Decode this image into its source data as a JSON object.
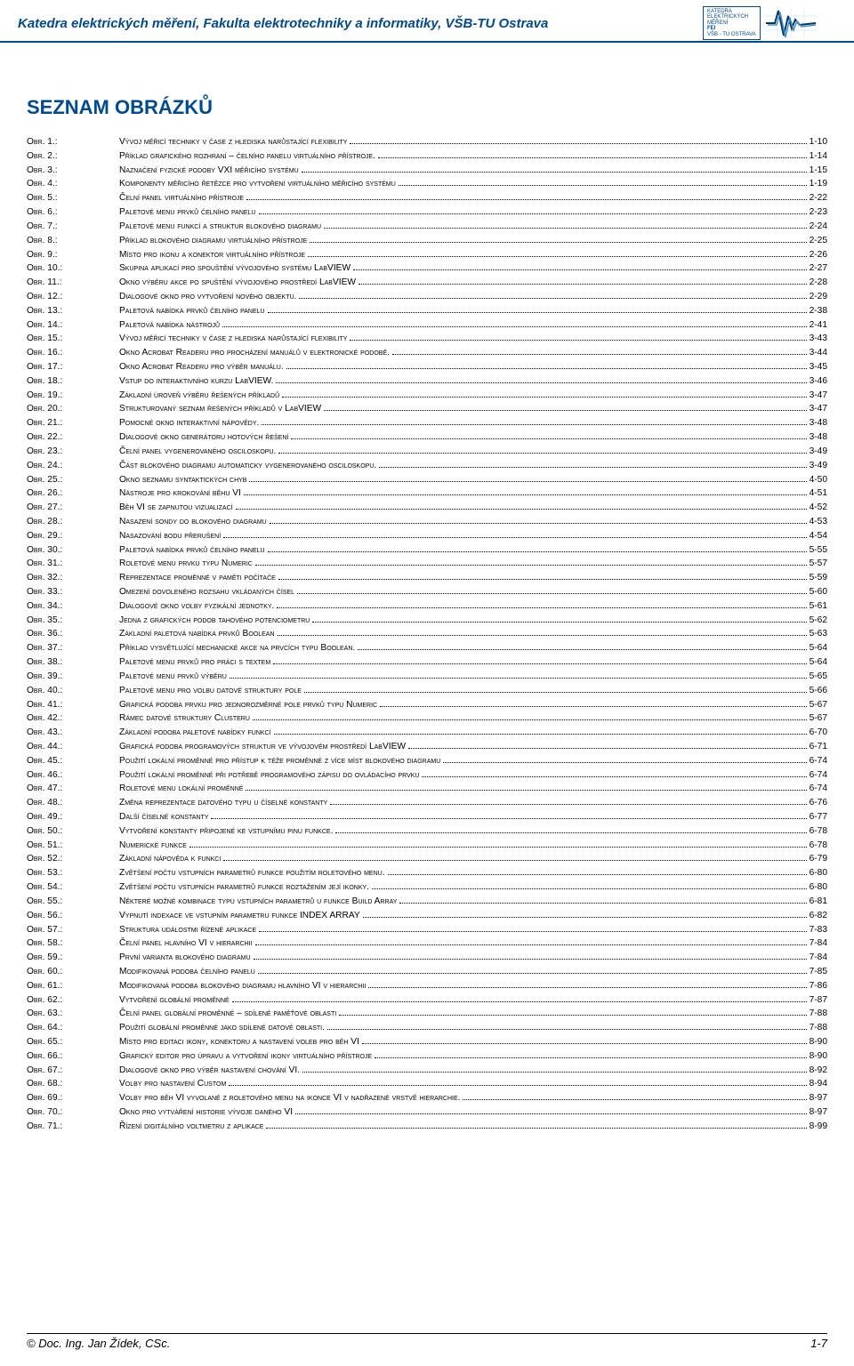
{
  "header": {
    "title": "Katedra elektrických měření, Fakulta elektrotechniky a informatiky, VŠB-TU Ostrava",
    "logo_text_l1": "KATEDRA",
    "logo_text_l2": "ELEKTRICKÝCH",
    "logo_text_l3": "MĚŘENÍ",
    "logo_text_l4": "FEI",
    "logo_text_l5": "VŠB - TU OSTRAVA"
  },
  "section_title": "SEZNAM OBRÁZKŮ",
  "toc": [
    {
      "label": "Obr. 1.:",
      "desc": "Vývoj měřicí techniky v čase z hlediska narůstající flexibility",
      "page": "1-10"
    },
    {
      "label": "Obr. 2.:",
      "desc": "Příklad grafického rozhraní – čelního panelu virtuálního přístroje.",
      "page": "1-14"
    },
    {
      "label": "Obr. 3.:",
      "desc": "Naznačení fyzické podoby VXI měřicího systému",
      "page": "1-15"
    },
    {
      "label": "Obr. 4.:",
      "desc": "Komponenty měřicího řetězce pro vytvoření virtuálního měřicího systému",
      "page": "1-19"
    },
    {
      "label": "Obr. 5.:",
      "desc": "Čelní panel virtuálního přístroje",
      "page": "2-22"
    },
    {
      "label": "Obr. 6.:",
      "desc": "Paletové menu prvků čelního panelu",
      "page": "2-23"
    },
    {
      "label": "Obr. 7.:",
      "desc": "Paletové menu funkcí a struktur blokového diagramu",
      "page": "2-24"
    },
    {
      "label": "Obr. 8.:",
      "desc": "Příklad blokového diagramu virtuálního přístroje",
      "page": "2-25"
    },
    {
      "label": "Obr. 9.:",
      "desc": "Místo pro ikonu a konektor virtuálního přístroje",
      "page": "2-26"
    },
    {
      "label": "Obr. 10.:",
      "desc": "Skupina aplikací pro spouštění vývojového systému LabVIEW",
      "page": "2-27"
    },
    {
      "label": "Obr. 11.:",
      "desc": "Okno výběru akce po spuštění vývojového prostředí LabVIEW",
      "page": "2-28"
    },
    {
      "label": "Obr. 12.:",
      "desc": "Dialogové okno pro vytvoření nového objektu.",
      "page": "2-29"
    },
    {
      "label": "Obr. 13.:",
      "desc": "Paletová nabídka prvků čelního panelu",
      "page": "2-38"
    },
    {
      "label": "Obr. 14.:",
      "desc": "Paletová nabídka nástrojů",
      "page": "2-41"
    },
    {
      "label": "Obr. 15.:",
      "desc": "Vývoj měřicí techniky v čase z hlediska narůstající flexibility",
      "page": "3-43"
    },
    {
      "label": "Obr. 16.:",
      "desc": "Okno Acrobat Readeru pro procházení manuálů v elektronické podobě.",
      "page": "3-44"
    },
    {
      "label": "Obr. 17.:",
      "desc": "Okno Acrobat Readeru pro výběr manuálu.",
      "page": "3-45"
    },
    {
      "label": "Obr. 18.:",
      "desc": "Vstup do interaktivního kurzu LabVIEW.",
      "page": "3-46"
    },
    {
      "label": "Obr. 19.:",
      "desc": "Základní úroveň výběru řešených příkladů",
      "page": "3-47"
    },
    {
      "label": "Obr. 20.:",
      "desc": "Strukturovaný seznam řešených příkladů v LabVIEW",
      "page": "3-47"
    },
    {
      "label": "Obr. 21.:",
      "desc": "Pomocné okno interaktivní nápovědy.",
      "page": "3-48"
    },
    {
      "label": "Obr. 22.:",
      "desc": "Dialogové okno generátoru hotových řešení",
      "page": "3-48"
    },
    {
      "label": "Obr. 23.:",
      "desc": "Čelní panel vygenerovaného osciloskopu.",
      "page": "3-49"
    },
    {
      "label": "Obr. 24.:",
      "desc": "Část blokového diagramu automaticky vygenerovaného osciloskopu.",
      "page": "3-49"
    },
    {
      "label": "Obr. 25.:",
      "desc": "Okno seznamu syntaktických chyb",
      "page": "4-50"
    },
    {
      "label": "Obr. 26.:",
      "desc": "Nástroje pro krokování běhu VI",
      "page": "4-51"
    },
    {
      "label": "Obr. 27.:",
      "desc": "Běh VI se zapnutou vizualizací",
      "page": "4-52"
    },
    {
      "label": "Obr. 28.:",
      "desc": "Nasazení sondy do blokového diagramu",
      "page": "4-53"
    },
    {
      "label": "Obr. 29.:",
      "desc": "Nasazování bodu přerušení",
      "page": "4-54"
    },
    {
      "label": "Obr. 30.:",
      "desc": "Paletová nabídka prvků čelního panelu",
      "page": "5-55"
    },
    {
      "label": "Obr. 31.:",
      "desc": "Roletové menu prvku typu Numeric",
      "page": "5-57"
    },
    {
      "label": "Obr. 32.:",
      "desc": "Reprezentace proměnné v paměti počítače",
      "page": "5-59"
    },
    {
      "label": "Obr. 33.:",
      "desc": "Omezení dovoleného rozsahu vkládaných čísel",
      "page": "5-60"
    },
    {
      "label": "Obr. 34.:",
      "desc": "Dialogové okno volby fyzikální jednotky.",
      "page": "5-61"
    },
    {
      "label": "Obr. 35.:",
      "desc": "Jedna z grafických podob tahového potenciometru",
      "page": "5-62"
    },
    {
      "label": "Obr. 36.:",
      "desc": "Základní paletová nabídka prvků Boolean",
      "page": "5-63"
    },
    {
      "label": "Obr. 37.:",
      "desc": "Příklad vysvětlující mechanické akce na prvcích typu Boolean.",
      "page": "5-64"
    },
    {
      "label": "Obr. 38.:",
      "desc": "Paletové menu prvků pro práci s textem",
      "page": "5-64"
    },
    {
      "label": "Obr. 39.:",
      "desc": "Paletové menu prvků výběru",
      "page": "5-65"
    },
    {
      "label": "Obr. 40.:",
      "desc": "Paletové menu pro volbu datové struktury pole",
      "page": "5-66"
    },
    {
      "label": "Obr. 41.:",
      "desc": "Grafická podoba prvku pro jednorozměrné pole prvků typu Numeric",
      "page": "5-67"
    },
    {
      "label": "Obr. 42.:",
      "desc": "Rámec datové struktury Clusteru",
      "page": "5-67"
    },
    {
      "label": "Obr. 43.:",
      "desc": "Základní podoba paletové nabídky funkcí",
      "page": "6-70"
    },
    {
      "label": "Obr. 44.:",
      "desc": "Grafická podoba programových struktur ve vývojovém prostředí LabVIEW",
      "page": "6-71"
    },
    {
      "label": "Obr. 45.:",
      "desc": "Použití lokální proměnné pro přístup k téže proměnné z více míst blokového diagramu",
      "page": "6-74"
    },
    {
      "label": "Obr. 46.:",
      "desc": "Použití lokální proměnné při potřebě programového zápisu do ovládacího prvku",
      "page": "6-74"
    },
    {
      "label": "Obr. 47.:",
      "desc": "Roletové menu lokální proměnné",
      "page": "6-74"
    },
    {
      "label": "Obr. 48.:",
      "desc": "Změna reprezentace datového typu u číselné konstanty",
      "page": "6-76"
    },
    {
      "label": "Obr. 49.:",
      "desc": "Další číselné konstanty",
      "page": "6-77"
    },
    {
      "label": "Obr. 50.:",
      "desc": "Vytvoření konstanty připojené ke vstupnímu pinu funkce.",
      "page": "6-78"
    },
    {
      "label": "Obr. 51.:",
      "desc": "Numerické funkce",
      "page": "6-78"
    },
    {
      "label": "Obr. 52.:",
      "desc": "Základní nápověda k funkci",
      "page": "6-79"
    },
    {
      "label": "Obr. 53.:",
      "desc": "Zvětšení počtu vstupních parametrů funkce použitím roletového menu.",
      "page": "6-80"
    },
    {
      "label": "Obr. 54.:",
      "desc": "Zvětšení počtu vstupních parametrů funkce roztažením její ikonky.",
      "page": "6-80"
    },
    {
      "label": "Obr. 55.:",
      "desc": "Některé možné kombinace typu vstupních parametrů u funkce Build Array",
      "page": "6-81"
    },
    {
      "label": "Obr. 56.:",
      "desc": "Vypnutí indexace ve vstupním parametru funkce INDEX ARRAY",
      "page": "6-82"
    },
    {
      "label": "Obr. 57.:",
      "desc": "Struktura událostmi řízené aplikace",
      "page": "7-83"
    },
    {
      "label": "Obr. 58.:",
      "desc": "Čelní panel hlavního VI v hierarchii",
      "page": "7-84"
    },
    {
      "label": "Obr. 59.:",
      "desc": "První varianta blokového diagramu",
      "page": "7-84"
    },
    {
      "label": "Obr. 60.:",
      "desc": "Modifikovaná podoba čelního panelu",
      "page": "7-85"
    },
    {
      "label": "Obr. 61.:",
      "desc": "Modifikovaná podoba blokového diagramu hlavního VI v hierarchii",
      "page": "7-86"
    },
    {
      "label": "Obr. 62.:",
      "desc": "Vytvoření globální proměnné",
      "page": "7-87"
    },
    {
      "label": "Obr. 63.:",
      "desc": "Čelní panel globální proměnné – sdílené paměťové oblasti",
      "page": "7-88"
    },
    {
      "label": "Obr. 64.:",
      "desc": "Použití globální proměnné jako sdílené datové oblasti.",
      "page": "7-88"
    },
    {
      "label": "Obr. 65.:",
      "desc": "Místo pro editaci ikony, konektoru a nastavení voleb pro běh VI",
      "page": "8-90"
    },
    {
      "label": "Obr. 66.:",
      "desc": "Grafický editor pro úpravu a vytvoření ikony virtuálního přístroje",
      "page": "8-90"
    },
    {
      "label": "Obr. 67.:",
      "desc": "Dialogové okno pro výběr nastavení chování VI.",
      "page": "8-92"
    },
    {
      "label": "Obr. 68.:",
      "desc": "Volby pro nastavení Custom",
      "page": "8-94"
    },
    {
      "label": "Obr. 69.:",
      "desc": "Volby pro běh VI vyvolané z roletového menu na ikonce VI v nadřazené vrstvě hierarchie.",
      "page": "8-97"
    },
    {
      "label": "Obr. 70.:",
      "desc": "Okno pro vytváření historie vývoje daného VI",
      "page": "8-97"
    },
    {
      "label": "Obr. 71.:",
      "desc": "Řízení digitálního voltmetru z aplikace",
      "page": "8-99"
    }
  ],
  "footer": {
    "left": "© Doc. Ing. Jan Žídek, CSc.",
    "right": "1-7"
  },
  "colors": {
    "brand_blue": "#004a8f",
    "wave_dark": "#003a6b",
    "wave_light": "#4a90c7"
  }
}
